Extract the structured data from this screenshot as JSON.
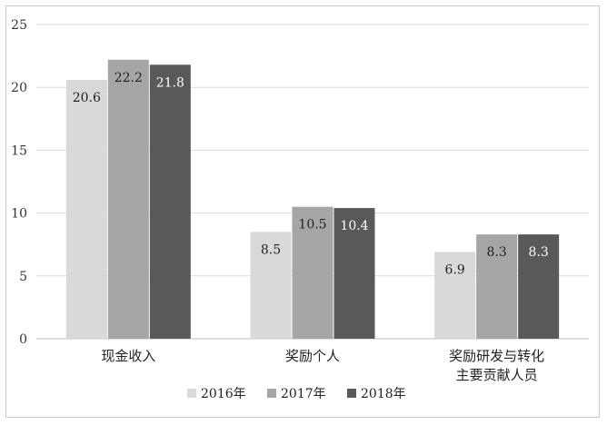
{
  "chart_data": {
    "type": "bar",
    "categories": [
      "现金收入",
      "奖励个人",
      "奖励研发与转化\n主要贡献人员"
    ],
    "series": [
      {
        "name": "2016年",
        "values": [
          20.6,
          8.5,
          6.9
        ],
        "color": "#d9d9d9"
      },
      {
        "name": "2017年",
        "values": [
          22.2,
          10.5,
          8.3
        ],
        "color": "#a6a6a6"
      },
      {
        "name": "2018年",
        "values": [
          21.8,
          10.4,
          8.3
        ],
        "color": "#595959"
      }
    ],
    "yticks": [
      0,
      5,
      10,
      15,
      20,
      25
    ],
    "ylim": [
      0,
      25
    ],
    "grid": true,
    "legend": "bottom",
    "title": "",
    "xlabel": "",
    "ylabel": ""
  }
}
